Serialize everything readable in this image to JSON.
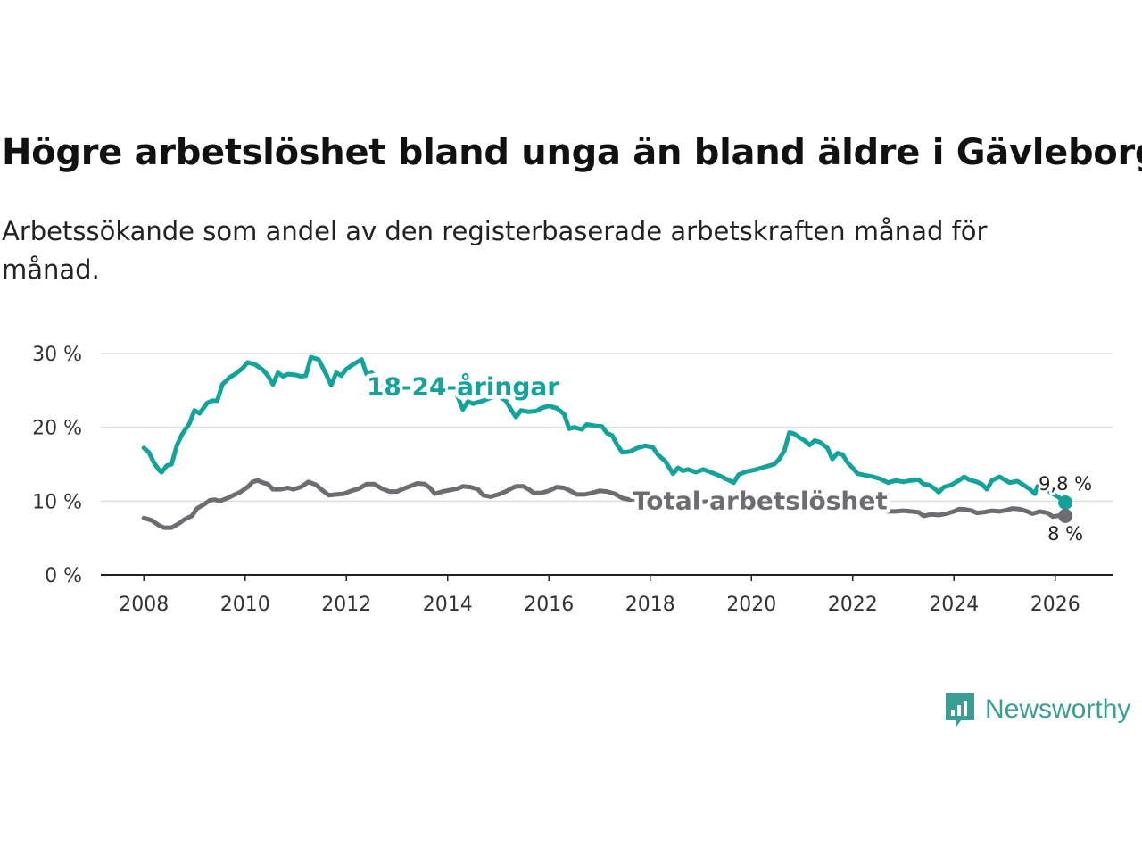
{
  "header": {
    "title": "Högre arbetslöshet bland unga än bland äldre i Gävleborg",
    "subtitle": "Arbetssökande som andel av den registerbaserade arbetskraften månad för månad."
  },
  "brand": {
    "name": "Newsworthy",
    "logo_icon": "bar-chart-speech-bubble-icon"
  },
  "chart_data": {
    "type": "line",
    "title": "Högre arbetslöshet bland unga än bland äldre i Gävleborg",
    "subtitle": "Arbetssökande som andel av den registerbaserade arbetskraften månad för månad.",
    "xlabel": "",
    "ylabel": "",
    "xlim": [
      2007.15,
      2027.15
    ],
    "ylim": [
      0,
      30
    ],
    "grid": true,
    "x_ticks": [
      2008,
      2010,
      2012,
      2014,
      2016,
      2018,
      2020,
      2022,
      2024,
      2026
    ],
    "x_tick_labels": [
      "2008",
      "2010",
      "2012",
      "2014",
      "2016",
      "2018",
      "2020",
      "2022",
      "2024",
      "2026"
    ],
    "y_ticks": [
      0,
      10,
      20,
      30
    ],
    "y_tick_labels": [
      "0 %",
      "10 %",
      "20 %",
      "30 %"
    ],
    "series": [
      {
        "name": "18-24-åringar",
        "label": "18-24-åringar",
        "color": "#13a39a",
        "end_label": "9,8 %",
        "points": [
          [
            2008.0,
            17.2
          ],
          [
            2008.1,
            16.6
          ],
          [
            2008.2,
            15.2
          ],
          [
            2008.3,
            14.2
          ],
          [
            2008.35,
            13.9
          ],
          [
            2008.45,
            14.8
          ],
          [
            2008.55,
            15.0
          ],
          [
            2008.65,
            17.5
          ],
          [
            2008.75,
            19.0
          ],
          [
            2008.9,
            20.5
          ],
          [
            2009.0,
            22.3
          ],
          [
            2009.1,
            21.9
          ],
          [
            2009.25,
            23.3
          ],
          [
            2009.35,
            23.6
          ],
          [
            2009.45,
            23.6
          ],
          [
            2009.55,
            25.8
          ],
          [
            2009.7,
            26.8
          ],
          [
            2009.8,
            27.2
          ],
          [
            2009.95,
            28.0
          ],
          [
            2010.05,
            28.8
          ],
          [
            2010.2,
            28.5
          ],
          [
            2010.35,
            27.8
          ],
          [
            2010.45,
            27.0
          ],
          [
            2010.55,
            25.8
          ],
          [
            2010.65,
            27.4
          ],
          [
            2010.75,
            26.9
          ],
          [
            2010.85,
            27.2
          ],
          [
            2011.0,
            27.1
          ],
          [
            2011.1,
            26.9
          ],
          [
            2011.2,
            27.0
          ],
          [
            2011.3,
            29.5
          ],
          [
            2011.45,
            29.2
          ],
          [
            2011.6,
            27.2
          ],
          [
            2011.7,
            25.7
          ],
          [
            2011.8,
            27.4
          ],
          [
            2011.9,
            27.0
          ],
          [
            2012.0,
            27.9
          ],
          [
            2012.15,
            28.6
          ],
          [
            2012.3,
            29.2
          ],
          [
            2012.4,
            27.2
          ],
          [
            2012.5,
            27.4
          ],
          [
            2012.6,
            26.5
          ],
          [
            2012.7,
            25.7
          ],
          [
            2012.85,
            25.6
          ],
          [
            2013.0,
            25.7
          ],
          [
            2013.15,
            25.4
          ],
          [
            2013.3,
            25.6
          ],
          [
            2013.45,
            25.3
          ],
          [
            2013.6,
            25.4
          ],
          [
            2013.75,
            25.3
          ],
          [
            2013.9,
            25.1
          ],
          [
            2014.0,
            24.8
          ],
          [
            2014.15,
            25.0
          ],
          [
            2014.3,
            22.4
          ],
          [
            2014.4,
            23.5
          ],
          [
            2014.5,
            23.2
          ],
          [
            2014.7,
            23.6
          ],
          [
            2014.85,
            24.0
          ],
          [
            2015.0,
            24.3
          ],
          [
            2015.15,
            23.6
          ],
          [
            2015.25,
            22.4
          ],
          [
            2015.35,
            21.4
          ],
          [
            2015.45,
            22.3
          ],
          [
            2015.6,
            22.1
          ],
          [
            2015.75,
            22.2
          ],
          [
            2015.85,
            22.6
          ],
          [
            2016.0,
            22.9
          ],
          [
            2016.15,
            22.6
          ],
          [
            2016.3,
            21.8
          ],
          [
            2016.4,
            19.8
          ],
          [
            2016.5,
            20.0
          ],
          [
            2016.65,
            19.7
          ],
          [
            2016.75,
            20.4
          ],
          [
            2016.9,
            20.2
          ],
          [
            2017.05,
            20.1
          ],
          [
            2017.15,
            19.2
          ],
          [
            2017.25,
            18.9
          ],
          [
            2017.35,
            17.6
          ],
          [
            2017.45,
            16.6
          ],
          [
            2017.6,
            16.7
          ],
          [
            2017.75,
            17.2
          ],
          [
            2017.9,
            17.5
          ],
          [
            2018.05,
            17.3
          ],
          [
            2018.15,
            16.3
          ],
          [
            2018.3,
            15.4
          ],
          [
            2018.45,
            13.7
          ],
          [
            2018.55,
            14.5
          ],
          [
            2018.65,
            14.1
          ],
          [
            2018.75,
            14.3
          ],
          [
            2018.9,
            13.9
          ],
          [
            2019.05,
            14.3
          ],
          [
            2019.2,
            13.9
          ],
          [
            2019.35,
            13.5
          ],
          [
            2019.5,
            13.0
          ],
          [
            2019.65,
            12.5
          ],
          [
            2019.75,
            13.6
          ],
          [
            2019.9,
            14.0
          ],
          [
            2020.05,
            14.2
          ],
          [
            2020.2,
            14.5
          ],
          [
            2020.35,
            14.8
          ],
          [
            2020.45,
            15.0
          ],
          [
            2020.55,
            15.7
          ],
          [
            2020.65,
            16.8
          ],
          [
            2020.75,
            19.3
          ],
          [
            2020.85,
            19.1
          ],
          [
            2020.95,
            18.6
          ],
          [
            2021.05,
            18.2
          ],
          [
            2021.15,
            17.6
          ],
          [
            2021.25,
            18.2
          ],
          [
            2021.35,
            18.0
          ],
          [
            2021.5,
            17.2
          ],
          [
            2021.6,
            15.7
          ],
          [
            2021.7,
            16.5
          ],
          [
            2021.8,
            16.3
          ],
          [
            2021.9,
            15.2
          ],
          [
            2022.0,
            14.5
          ],
          [
            2022.1,
            13.7
          ],
          [
            2022.25,
            13.5
          ],
          [
            2022.4,
            13.3
          ],
          [
            2022.55,
            13.0
          ],
          [
            2022.7,
            12.5
          ],
          [
            2022.85,
            12.8
          ],
          [
            2023.0,
            12.6
          ],
          [
            2023.15,
            12.8
          ],
          [
            2023.3,
            12.9
          ],
          [
            2023.4,
            12.3
          ],
          [
            2023.5,
            12.2
          ],
          [
            2023.6,
            11.8
          ],
          [
            2023.7,
            11.2
          ],
          [
            2023.8,
            11.9
          ],
          [
            2023.95,
            12.2
          ],
          [
            2024.1,
            12.8
          ],
          [
            2024.2,
            13.3
          ],
          [
            2024.3,
            12.9
          ],
          [
            2024.45,
            12.6
          ],
          [
            2024.55,
            12.3
          ],
          [
            2024.65,
            11.6
          ],
          [
            2024.75,
            12.8
          ],
          [
            2024.9,
            13.3
          ],
          [
            2025.0,
            12.9
          ],
          [
            2025.1,
            12.5
          ],
          [
            2025.25,
            12.7
          ],
          [
            2025.35,
            12.3
          ],
          [
            2025.5,
            11.6
          ],
          [
            2025.6,
            11.0
          ],
          [
            2025.65,
            12.0
          ],
          [
            2025.8,
            12.0
          ],
          [
            2025.9,
            11.2
          ],
          [
            2026.05,
            10.6
          ],
          [
            2026.15,
            10.1
          ],
          [
            2026.2,
            9.8
          ]
        ]
      },
      {
        "name": "Total arbetslöshet",
        "label": "Total arbetslöshet",
        "color": "#6d6d71",
        "end_label": "8 %",
        "points": [
          [
            2008.0,
            7.7
          ],
          [
            2008.15,
            7.4
          ],
          [
            2008.3,
            6.7
          ],
          [
            2008.4,
            6.4
          ],
          [
            2008.55,
            6.4
          ],
          [
            2008.7,
            7.0
          ],
          [
            2008.8,
            7.5
          ],
          [
            2008.95,
            8.0
          ],
          [
            2009.05,
            9.0
          ],
          [
            2009.2,
            9.6
          ],
          [
            2009.3,
            10.1
          ],
          [
            2009.4,
            10.2
          ],
          [
            2009.5,
            10.0
          ],
          [
            2009.65,
            10.4
          ],
          [
            2009.8,
            10.9
          ],
          [
            2009.9,
            11.2
          ],
          [
            2010.05,
            11.9
          ],
          [
            2010.15,
            12.6
          ],
          [
            2010.25,
            12.8
          ],
          [
            2010.35,
            12.5
          ],
          [
            2010.45,
            12.3
          ],
          [
            2010.55,
            11.6
          ],
          [
            2010.7,
            11.6
          ],
          [
            2010.85,
            11.8
          ],
          [
            2010.95,
            11.6
          ],
          [
            2011.1,
            11.9
          ],
          [
            2011.25,
            12.6
          ],
          [
            2011.4,
            12.2
          ],
          [
            2011.5,
            11.6
          ],
          [
            2011.65,
            10.8
          ],
          [
            2011.8,
            10.9
          ],
          [
            2011.95,
            11.0
          ],
          [
            2012.1,
            11.4
          ],
          [
            2012.25,
            11.7
          ],
          [
            2012.4,
            12.3
          ],
          [
            2012.55,
            12.3
          ],
          [
            2012.7,
            11.7
          ],
          [
            2012.85,
            11.3
          ],
          [
            2013.0,
            11.3
          ],
          [
            2013.1,
            11.6
          ],
          [
            2013.25,
            12.0
          ],
          [
            2013.4,
            12.4
          ],
          [
            2013.55,
            12.3
          ],
          [
            2013.65,
            11.8
          ],
          [
            2013.75,
            11.0
          ],
          [
            2013.9,
            11.3
          ],
          [
            2014.05,
            11.5
          ],
          [
            2014.2,
            11.7
          ],
          [
            2014.3,
            12.0
          ],
          [
            2014.45,
            11.9
          ],
          [
            2014.6,
            11.6
          ],
          [
            2014.7,
            10.8
          ],
          [
            2014.85,
            10.6
          ],
          [
            2015.0,
            10.9
          ],
          [
            2015.15,
            11.3
          ],
          [
            2015.25,
            11.7
          ],
          [
            2015.35,
            12.0
          ],
          [
            2015.5,
            12.0
          ],
          [
            2015.6,
            11.6
          ],
          [
            2015.7,
            11.1
          ],
          [
            2015.85,
            11.1
          ],
          [
            2016.0,
            11.4
          ],
          [
            2016.15,
            11.9
          ],
          [
            2016.3,
            11.8
          ],
          [
            2016.45,
            11.3
          ],
          [
            2016.55,
            10.9
          ],
          [
            2016.7,
            10.9
          ],
          [
            2016.85,
            11.1
          ],
          [
            2017.0,
            11.4
          ],
          [
            2017.15,
            11.3
          ],
          [
            2017.3,
            11.0
          ],
          [
            2017.45,
            10.4
          ],
          [
            2017.6,
            10.2
          ],
          [
            2017.75,
            10.3
          ],
          [
            2018.0,
            10.1
          ],
          [
            2018.5,
            10.0
          ],
          [
            2019.0,
            9.9
          ],
          [
            2019.5,
            10.0
          ],
          [
            2020.0,
            10.3
          ],
          [
            2020.5,
            11.0
          ],
          [
            2021.0,
            10.7
          ],
          [
            2021.5,
            10.2
          ],
          [
            2022.0,
            9.5
          ],
          [
            2022.3,
            9.3
          ],
          [
            2022.5,
            8.8
          ],
          [
            2022.7,
            8.6
          ],
          [
            2022.85,
            8.6
          ],
          [
            2023.0,
            8.7
          ],
          [
            2023.15,
            8.6
          ],
          [
            2023.3,
            8.5
          ],
          [
            2023.4,
            8.0
          ],
          [
            2023.55,
            8.2
          ],
          [
            2023.7,
            8.1
          ],
          [
            2023.85,
            8.3
          ],
          [
            2024.0,
            8.6
          ],
          [
            2024.1,
            8.9
          ],
          [
            2024.2,
            8.9
          ],
          [
            2024.35,
            8.7
          ],
          [
            2024.45,
            8.4
          ],
          [
            2024.6,
            8.5
          ],
          [
            2024.75,
            8.7
          ],
          [
            2024.9,
            8.6
          ],
          [
            2025.05,
            8.8
          ],
          [
            2025.15,
            9.0
          ],
          [
            2025.3,
            8.9
          ],
          [
            2025.45,
            8.6
          ],
          [
            2025.55,
            8.3
          ],
          [
            2025.7,
            8.6
          ],
          [
            2025.85,
            8.4
          ],
          [
            2025.95,
            7.9
          ],
          [
            2026.05,
            8.0
          ],
          [
            2026.15,
            8.1
          ],
          [
            2026.2,
            8.0
          ]
        ]
      }
    ]
  }
}
